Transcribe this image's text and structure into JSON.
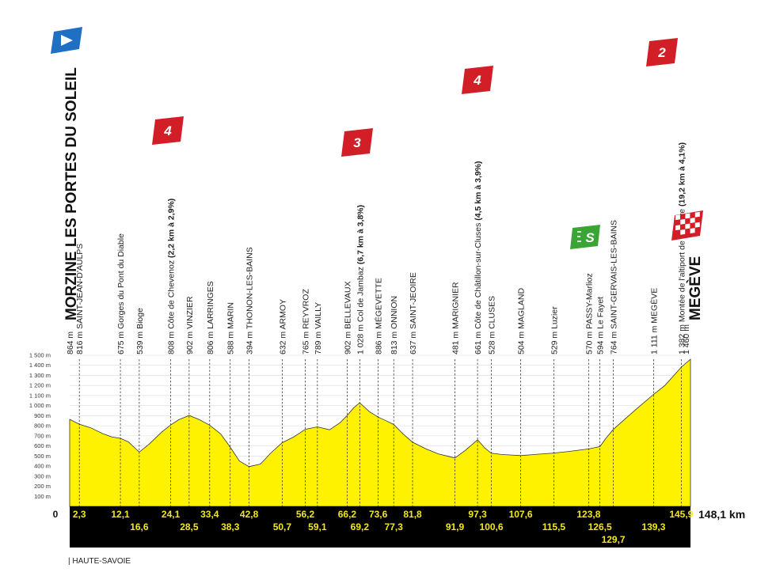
{
  "chart_data": {
    "type": "area",
    "start": "MORZINE LES PORTES DU SOLEIL",
    "finish": "MEGÈVE",
    "total_distance": "148,1 km",
    "zero_label": "0",
    "region": "| HAUTE-SAVOIE",
    "xlim": [
      0,
      148.1
    ],
    "ylim": [
      0,
      1500
    ],
    "y_ticks": [
      {
        "value": 100,
        "label": "100 m"
      },
      {
        "value": 200,
        "label": "200 m"
      },
      {
        "value": 300,
        "label": "300 m"
      },
      {
        "value": 400,
        "label": "400 m"
      },
      {
        "value": 500,
        "label": "500 m"
      },
      {
        "value": 600,
        "label": "600 m"
      },
      {
        "value": 700,
        "label": "700 m"
      },
      {
        "value": 800,
        "label": "800 m"
      },
      {
        "value": 900,
        "label": "900 m"
      },
      {
        "value": 1000,
        "label": "1 000 m"
      },
      {
        "value": 1100,
        "label": "1 100 m"
      },
      {
        "value": 1200,
        "label": "1 200 m"
      },
      {
        "value": 1300,
        "label": "1 300 m"
      },
      {
        "value": 1400,
        "label": "1 400 m"
      },
      {
        "value": 1500,
        "label": "1 500 m"
      }
    ],
    "profile": [
      [
        0,
        864
      ],
      [
        2.3,
        816
      ],
      [
        5,
        780
      ],
      [
        8,
        720
      ],
      [
        10,
        690
      ],
      [
        12.1,
        675
      ],
      [
        14,
        640
      ],
      [
        16.6,
        539
      ],
      [
        19,
        620
      ],
      [
        22,
        740
      ],
      [
        24.1,
        808
      ],
      [
        26,
        860
      ],
      [
        28.5,
        902
      ],
      [
        31,
        860
      ],
      [
        33.4,
        806
      ],
      [
        36,
        720
      ],
      [
        38.3,
        588
      ],
      [
        40.5,
        450
      ],
      [
        42.8,
        394
      ],
      [
        45.5,
        420
      ],
      [
        48,
        530
      ],
      [
        50.7,
        632
      ],
      [
        53.5,
        690
      ],
      [
        56.2,
        765
      ],
      [
        59.1,
        789
      ],
      [
        62,
        760
      ],
      [
        64.5,
        830
      ],
      [
        66.2,
        902
      ],
      [
        67.8,
        980
      ],
      [
        69.2,
        1028
      ],
      [
        71.5,
        940
      ],
      [
        73.6,
        886
      ],
      [
        75.5,
        850
      ],
      [
        77.3,
        813
      ],
      [
        79.5,
        720
      ],
      [
        81.8,
        637
      ],
      [
        85,
        570
      ],
      [
        88,
        520
      ],
      [
        90,
        500
      ],
      [
        91.9,
        481
      ],
      [
        94.5,
        560
      ],
      [
        97.3,
        661
      ],
      [
        99,
        580
      ],
      [
        100.6,
        528
      ],
      [
        103,
        515
      ],
      [
        105.5,
        510
      ],
      [
        107.6,
        504
      ],
      [
        111,
        515
      ],
      [
        115.5,
        529
      ],
      [
        119,
        545
      ],
      [
        123.8,
        570
      ],
      [
        125.5,
        585
      ],
      [
        126.5,
        594
      ],
      [
        128,
        680
      ],
      [
        129.7,
        764
      ],
      [
        132,
        850
      ],
      [
        135,
        960
      ],
      [
        139.3,
        1111
      ],
      [
        142,
        1200
      ],
      [
        145.9,
        1382
      ],
      [
        148.1,
        1460
      ]
    ],
    "waypoints": [
      {
        "km": 0,
        "km_label": "",
        "row": 0,
        "altitude": "864 m",
        "name": "",
        "climb": ""
      },
      {
        "km": 2.3,
        "km_label": "2,3",
        "row": 0,
        "altitude": "816 m",
        "name": "SAINT-JEAN-D'AULPS",
        "climb": ""
      },
      {
        "km": 12.1,
        "km_label": "12,1",
        "row": 0,
        "altitude": "675 m",
        "name": "Gorges du Pont du Diable",
        "climb": ""
      },
      {
        "km": 16.6,
        "km_label": "16,6",
        "row": 1,
        "altitude": "539 m",
        "name": "Bioge",
        "climb": ""
      },
      {
        "km": 24.1,
        "km_label": "24,1",
        "row": 0,
        "altitude": "808 m",
        "name": "Côte de Chevenoz",
        "climb": "(2,2 km à 2,9%)"
      },
      {
        "km": 28.5,
        "km_label": "28,5",
        "row": 1,
        "altitude": "902 m",
        "name": "VINZIER",
        "climb": ""
      },
      {
        "km": 33.4,
        "km_label": "33,4",
        "row": 0,
        "altitude": "806 m",
        "name": "LARRINGES",
        "climb": ""
      },
      {
        "km": 38.3,
        "km_label": "38,3",
        "row": 1,
        "altitude": "588 m",
        "name": "MARIN",
        "climb": ""
      },
      {
        "km": 42.8,
        "km_label": "42,8",
        "row": 0,
        "altitude": "394 m",
        "name": "THONON-LES-BAINS",
        "climb": ""
      },
      {
        "km": 50.7,
        "km_label": "50,7",
        "row": 1,
        "altitude": "632 m",
        "name": "ARMOY",
        "climb": ""
      },
      {
        "km": 56.2,
        "km_label": "56,2",
        "row": 0,
        "altitude": "765 m",
        "name": "REYVROZ",
        "climb": ""
      },
      {
        "km": 59.1,
        "km_label": "59,1",
        "row": 1,
        "altitude": "789 m",
        "name": "VAILLY",
        "climb": ""
      },
      {
        "km": 66.2,
        "km_label": "66,2",
        "row": 0,
        "altitude": "902 m",
        "name": "BELLEVAUX",
        "climb": ""
      },
      {
        "km": 69.2,
        "km_label": "69,2",
        "row": 1,
        "altitude": "1 028 m",
        "name": "Col de Jambaz",
        "climb": "(6,7 km à 3,8%)"
      },
      {
        "km": 73.6,
        "km_label": "73,6",
        "row": 0,
        "altitude": "886 m",
        "name": "MÉGEVETTE",
        "climb": ""
      },
      {
        "km": 77.3,
        "km_label": "77,3",
        "row": 1,
        "altitude": "813 m",
        "name": "ONNION",
        "climb": ""
      },
      {
        "km": 81.8,
        "km_label": "81,8",
        "row": 0,
        "altitude": "637 m",
        "name": "SAINT-JEOIRE",
        "climb": ""
      },
      {
        "km": 91.9,
        "km_label": "91,9",
        "row": 1,
        "altitude": "481 m",
        "name": "MARIGNIER",
        "climb": ""
      },
      {
        "km": 97.3,
        "km_label": "97,3",
        "row": 0,
        "altitude": "661 m",
        "name": "Côte de Châtillon-sur-Cluses",
        "climb": "(4,5 km à 3,9%)"
      },
      {
        "km": 100.6,
        "km_label": "100,6",
        "row": 1,
        "altitude": "528 m",
        "name": "CLUSES",
        "climb": ""
      },
      {
        "km": 107.6,
        "km_label": "107,6",
        "row": 0,
        "altitude": "504 m",
        "name": "MAGLAND",
        "climb": ""
      },
      {
        "km": 115.5,
        "km_label": "115,5",
        "row": 1,
        "altitude": "529 m",
        "name": "Luzier",
        "climb": ""
      },
      {
        "km": 123.8,
        "km_label": "123,8",
        "row": 0,
        "altitude": "570 m",
        "name": "PASSY-Marlioz",
        "climb": ""
      },
      {
        "km": 126.5,
        "km_label": "126,5",
        "row": 1,
        "altitude": "594 m",
        "name": "Le Fayet",
        "climb": ""
      },
      {
        "km": 129.7,
        "km_label": "129,7",
        "row": 2,
        "altitude": "764 m",
        "name": "SAINT-GERVAIS-LES-BAINS",
        "climb": ""
      },
      {
        "km": 139.3,
        "km_label": "139,3",
        "row": 1,
        "altitude": "1 111 m",
        "name": "MEGÈVE",
        "climb": ""
      },
      {
        "km": 145.9,
        "km_label": "145,9",
        "row": 0,
        "altitude": "1 382 m",
        "name": "Montée de l'altiport de Megève",
        "climb": "(19,2 km à 4,1%)"
      },
      {
        "km": 148.1,
        "km_label": "",
        "row": 0,
        "altitude": "1 460 m",
        "name": "",
        "climb": ""
      }
    ],
    "climbs": [
      {
        "km": 24.1,
        "category": "4",
        "color": "#d21f27"
      },
      {
        "km": 69.2,
        "category": "3",
        "color": "#d21f27"
      },
      {
        "km": 97.3,
        "category": "4",
        "color": "#d21f27"
      },
      {
        "km": 145.9,
        "category": "2",
        "color": "#d21f27"
      }
    ],
    "sprint": {
      "km": 123.8,
      "label": "S",
      "color": "#3aa535"
    },
    "colors": {
      "profile": "#fff200",
      "band": "#000000",
      "km_text": "#f2e61e",
      "start_flag": "#1f6fc3"
    }
  }
}
